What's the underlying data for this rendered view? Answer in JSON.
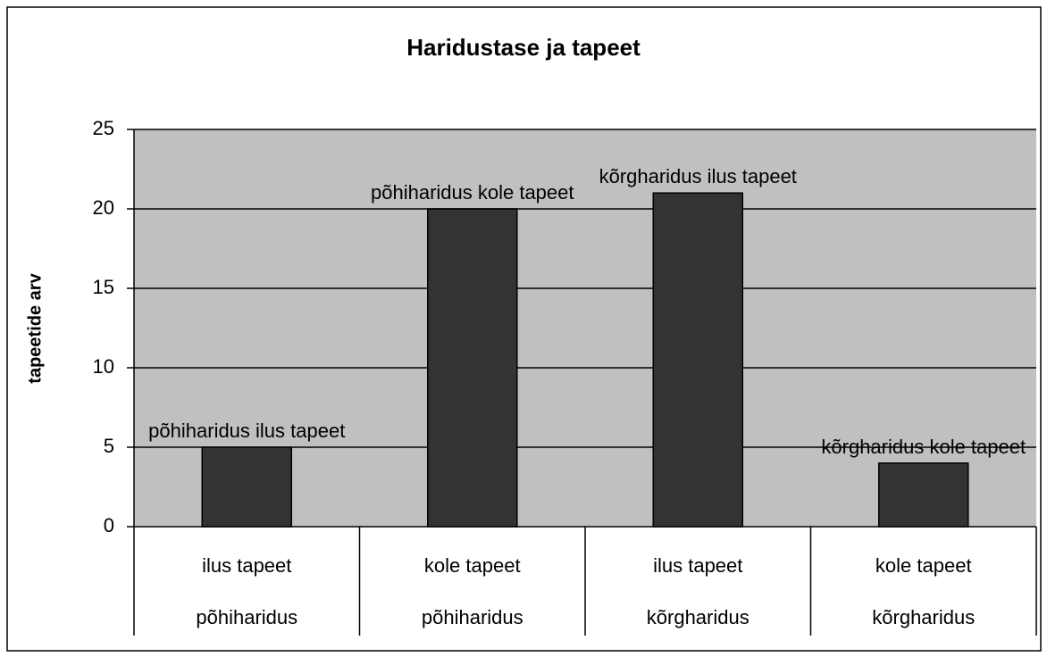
{
  "chart_data": {
    "type": "bar",
    "title": "Haridustase ja tapeet",
    "y_label": "tapeetide arv",
    "categories": [
      "ilus tapeet",
      "kole tapeet",
      "ilus tapeet",
      "kole tapeet"
    ],
    "groups": [
      "põhiharidus",
      "põhiharidus",
      "kõrgharidus",
      "kõrgharidus"
    ],
    "values": [
      5,
      20,
      21,
      4
    ],
    "value_labels": [
      "põhiharidus ilus tapeet",
      "põhiharidus kole tapeet",
      "kõrgharidus ilus tapeet",
      "kõrgharidus kole tapeet"
    ],
    "color": "#333333",
    "background": "#c0c0c0",
    "ylim": [
      0,
      25
    ],
    "yticks": [
      0,
      5,
      10,
      15,
      20,
      25
    ],
    "grid": true
  }
}
